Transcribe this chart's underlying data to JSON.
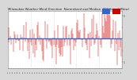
{
  "title": "Milwaukee Weather Wind Direction  Normalized and Median  (24 Hours) (New)",
  "title_fontsize": 2.8,
  "background_color": "#d8d8d8",
  "plot_bg_color": "#ffffff",
  "median_value": 0.5,
  "median_color": "#3366cc",
  "bar_color": "#cc0000",
  "ylim": [
    -0.15,
    1.1
  ],
  "ytick_positions": [
    0.0,
    0.25,
    0.5,
    0.75,
    1.0
  ],
  "ytick_labels": [
    "1",
    "",
    "",
    "",
    "5"
  ],
  "n_points": 144,
  "grid_color": "#aaaaaa",
  "grid_style": ":",
  "legend_blue_color": "#3366cc",
  "legend_red_color": "#cc0000",
  "seed": 7
}
